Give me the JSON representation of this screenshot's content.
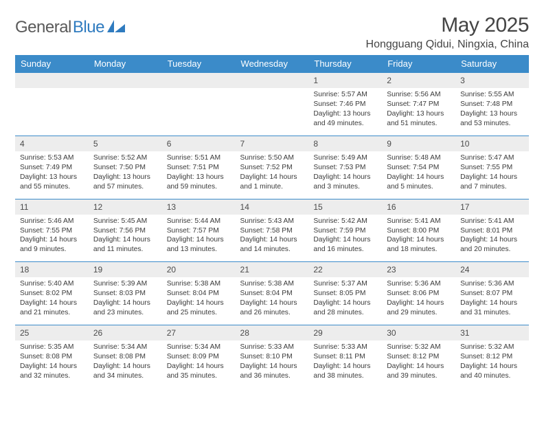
{
  "brand": {
    "name1": "General",
    "name2": "Blue"
  },
  "title": "May 2025",
  "location": "Hongguang Qidui, Ningxia, China",
  "colors": {
    "header_bg": "#3b8bc9",
    "header_text": "#ffffff",
    "daynum_bg": "#ededed",
    "border": "#3b8bc9",
    "body_text": "#3a3a3a",
    "brand_gray": "#5a5a5a",
    "brand_blue": "#2f7bbf"
  },
  "day_headers": [
    "Sunday",
    "Monday",
    "Tuesday",
    "Wednesday",
    "Thursday",
    "Friday",
    "Saturday"
  ],
  "weeks": [
    [
      null,
      null,
      null,
      null,
      {
        "n": "1",
        "sr": "5:57 AM",
        "ss": "7:46 PM",
        "dl": "13 hours and 49 minutes."
      },
      {
        "n": "2",
        "sr": "5:56 AM",
        "ss": "7:47 PM",
        "dl": "13 hours and 51 minutes."
      },
      {
        "n": "3",
        "sr": "5:55 AM",
        "ss": "7:48 PM",
        "dl": "13 hours and 53 minutes."
      }
    ],
    [
      {
        "n": "4",
        "sr": "5:53 AM",
        "ss": "7:49 PM",
        "dl": "13 hours and 55 minutes."
      },
      {
        "n": "5",
        "sr": "5:52 AM",
        "ss": "7:50 PM",
        "dl": "13 hours and 57 minutes."
      },
      {
        "n": "6",
        "sr": "5:51 AM",
        "ss": "7:51 PM",
        "dl": "13 hours and 59 minutes."
      },
      {
        "n": "7",
        "sr": "5:50 AM",
        "ss": "7:52 PM",
        "dl": "14 hours and 1 minute."
      },
      {
        "n": "8",
        "sr": "5:49 AM",
        "ss": "7:53 PM",
        "dl": "14 hours and 3 minutes."
      },
      {
        "n": "9",
        "sr": "5:48 AM",
        "ss": "7:54 PM",
        "dl": "14 hours and 5 minutes."
      },
      {
        "n": "10",
        "sr": "5:47 AM",
        "ss": "7:55 PM",
        "dl": "14 hours and 7 minutes."
      }
    ],
    [
      {
        "n": "11",
        "sr": "5:46 AM",
        "ss": "7:55 PM",
        "dl": "14 hours and 9 minutes."
      },
      {
        "n": "12",
        "sr": "5:45 AM",
        "ss": "7:56 PM",
        "dl": "14 hours and 11 minutes."
      },
      {
        "n": "13",
        "sr": "5:44 AM",
        "ss": "7:57 PM",
        "dl": "14 hours and 13 minutes."
      },
      {
        "n": "14",
        "sr": "5:43 AM",
        "ss": "7:58 PM",
        "dl": "14 hours and 14 minutes."
      },
      {
        "n": "15",
        "sr": "5:42 AM",
        "ss": "7:59 PM",
        "dl": "14 hours and 16 minutes."
      },
      {
        "n": "16",
        "sr": "5:41 AM",
        "ss": "8:00 PM",
        "dl": "14 hours and 18 minutes."
      },
      {
        "n": "17",
        "sr": "5:41 AM",
        "ss": "8:01 PM",
        "dl": "14 hours and 20 minutes."
      }
    ],
    [
      {
        "n": "18",
        "sr": "5:40 AM",
        "ss": "8:02 PM",
        "dl": "14 hours and 21 minutes."
      },
      {
        "n": "19",
        "sr": "5:39 AM",
        "ss": "8:03 PM",
        "dl": "14 hours and 23 minutes."
      },
      {
        "n": "20",
        "sr": "5:38 AM",
        "ss": "8:04 PM",
        "dl": "14 hours and 25 minutes."
      },
      {
        "n": "21",
        "sr": "5:38 AM",
        "ss": "8:04 PM",
        "dl": "14 hours and 26 minutes."
      },
      {
        "n": "22",
        "sr": "5:37 AM",
        "ss": "8:05 PM",
        "dl": "14 hours and 28 minutes."
      },
      {
        "n": "23",
        "sr": "5:36 AM",
        "ss": "8:06 PM",
        "dl": "14 hours and 29 minutes."
      },
      {
        "n": "24",
        "sr": "5:36 AM",
        "ss": "8:07 PM",
        "dl": "14 hours and 31 minutes."
      }
    ],
    [
      {
        "n": "25",
        "sr": "5:35 AM",
        "ss": "8:08 PM",
        "dl": "14 hours and 32 minutes."
      },
      {
        "n": "26",
        "sr": "5:34 AM",
        "ss": "8:08 PM",
        "dl": "14 hours and 34 minutes."
      },
      {
        "n": "27",
        "sr": "5:34 AM",
        "ss": "8:09 PM",
        "dl": "14 hours and 35 minutes."
      },
      {
        "n": "28",
        "sr": "5:33 AM",
        "ss": "8:10 PM",
        "dl": "14 hours and 36 minutes."
      },
      {
        "n": "29",
        "sr": "5:33 AM",
        "ss": "8:11 PM",
        "dl": "14 hours and 38 minutes."
      },
      {
        "n": "30",
        "sr": "5:32 AM",
        "ss": "8:12 PM",
        "dl": "14 hours and 39 minutes."
      },
      {
        "n": "31",
        "sr": "5:32 AM",
        "ss": "8:12 PM",
        "dl": "14 hours and 40 minutes."
      }
    ]
  ],
  "labels": {
    "sunrise": "Sunrise:",
    "sunset": "Sunset:",
    "daylight": "Daylight:"
  }
}
